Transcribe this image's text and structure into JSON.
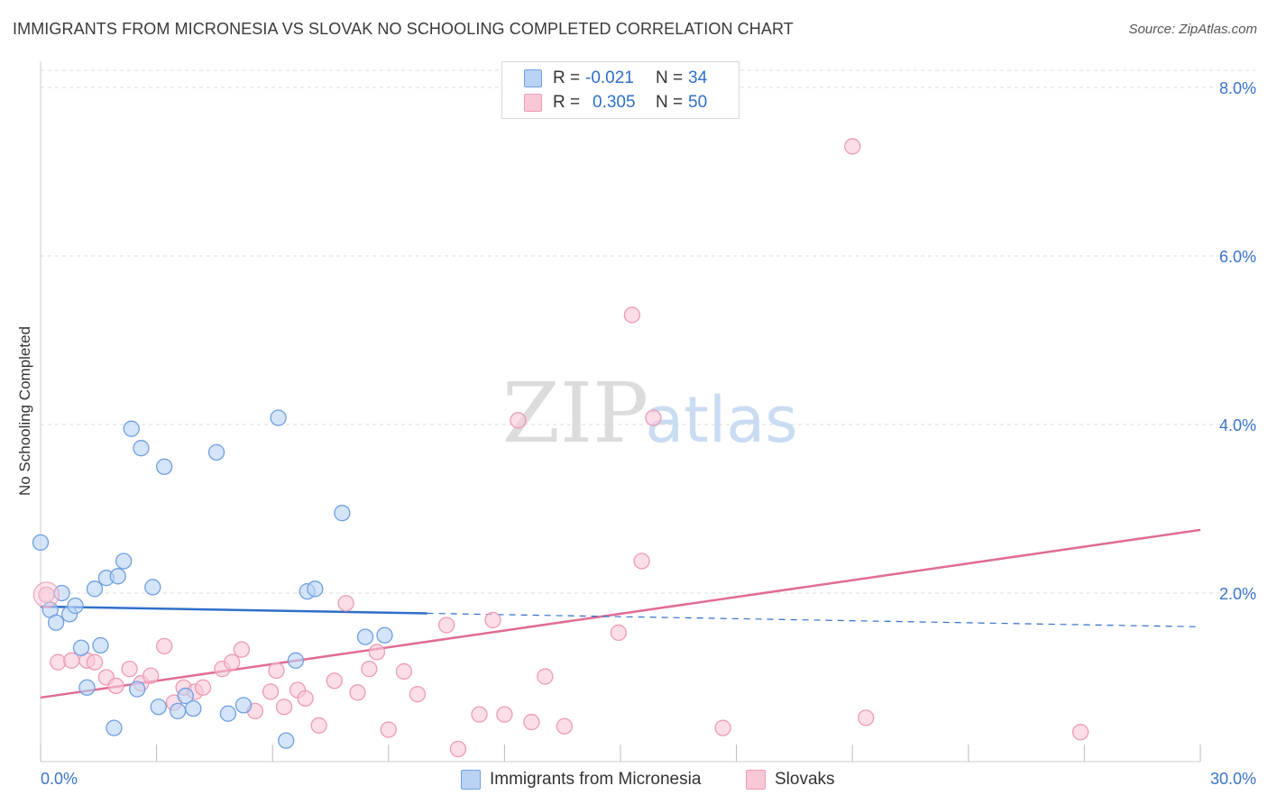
{
  "title": "IMMIGRANTS FROM MICRONESIA VS SLOVAK NO SCHOOLING COMPLETED CORRELATION CHART",
  "source": "Source: ZipAtlas.com",
  "watermark": {
    "zip": "ZIP",
    "atlas": "atlas"
  },
  "legend": {
    "r_label": "R =",
    "n_label": "N =",
    "series": [
      {
        "r": "-0.021",
        "n": "34"
      },
      {
        "r": "0.305",
        "n": "50"
      }
    ]
  },
  "chart_data": {
    "type": "scatter",
    "title": "IMMIGRANTS FROM MICRONESIA VS SLOVAK NO SCHOOLING COMPLETED CORRELATION CHART",
    "xlabel": "",
    "ylabel": "No Schooling Completed",
    "xlim": [
      0,
      30
    ],
    "ylim": [
      0,
      8.3
    ],
    "x_tick_labels": [
      {
        "value": 0,
        "label": "0.0%"
      },
      {
        "value": 30,
        "label": "30.0%"
      }
    ],
    "y_tick_labels": [
      {
        "value": 2,
        "label": "2.0%"
      },
      {
        "value": 4,
        "label": "4.0%"
      },
      {
        "value": 6,
        "label": "6.0%"
      },
      {
        "value": 8,
        "label": "8.0%"
      }
    ],
    "grid": true,
    "series": [
      {
        "name": "Immigrants from Micronesia",
        "color": "#6f9fe0",
        "fill": "#b9d3f5",
        "line_color": "#2f6fc9",
        "trend": {
          "x0": 0,
          "y0": 1.84,
          "x1": 10,
          "y1": 1.76,
          "dashed_to_x": 30,
          "dashed_to_y": 1.6
        },
        "points": [
          [
            0.0,
            2.6
          ],
          [
            0.25,
            1.8
          ],
          [
            0.4,
            1.65
          ],
          [
            0.55,
            2.0
          ],
          [
            0.75,
            1.75
          ],
          [
            0.9,
            1.85
          ],
          [
            1.05,
            1.35
          ],
          [
            1.2,
            0.88
          ],
          [
            1.4,
            2.05
          ],
          [
            1.55,
            1.38
          ],
          [
            1.7,
            2.18
          ],
          [
            2.0,
            2.2
          ],
          [
            2.15,
            2.38
          ],
          [
            2.35,
            3.95
          ],
          [
            2.5,
            0.86
          ],
          [
            2.6,
            3.72
          ],
          [
            2.9,
            2.07
          ],
          [
            3.05,
            0.65
          ],
          [
            3.2,
            3.5
          ],
          [
            3.55,
            0.6
          ],
          [
            3.75,
            0.78
          ],
          [
            3.95,
            0.63
          ],
          [
            4.55,
            3.67
          ],
          [
            4.85,
            0.57
          ],
          [
            5.25,
            0.67
          ],
          [
            6.15,
            4.08
          ],
          [
            6.35,
            0.25
          ],
          [
            6.6,
            1.2
          ],
          [
            6.9,
            2.02
          ],
          [
            7.1,
            2.05
          ],
          [
            7.8,
            2.95
          ],
          [
            8.4,
            1.48
          ],
          [
            8.9,
            1.5
          ],
          [
            1.9,
            0.4
          ]
        ]
      },
      {
        "name": "Slovaks",
        "color": "#ee9bb5",
        "fill": "#f9c8d7",
        "line_color": "#e06c94",
        "trend": {
          "x0": 0,
          "y0": 0.76,
          "x1": 30,
          "y1": 2.75
        },
        "points": [
          [
            0.15,
            1.98
          ],
          [
            0.45,
            1.18
          ],
          [
            0.8,
            1.2
          ],
          [
            1.2,
            1.2
          ],
          [
            1.4,
            1.18
          ],
          [
            1.7,
            1.0
          ],
          [
            1.95,
            0.9
          ],
          [
            2.3,
            1.1
          ],
          [
            2.6,
            0.93
          ],
          [
            2.85,
            1.02
          ],
          [
            3.2,
            1.37
          ],
          [
            3.45,
            0.7
          ],
          [
            3.7,
            0.88
          ],
          [
            4.0,
            0.83
          ],
          [
            4.2,
            0.88
          ],
          [
            4.7,
            1.1
          ],
          [
            4.95,
            1.18
          ],
          [
            5.2,
            1.33
          ],
          [
            5.55,
            0.6
          ],
          [
            5.95,
            0.83
          ],
          [
            6.1,
            1.08
          ],
          [
            6.3,
            0.65
          ],
          [
            6.65,
            0.85
          ],
          [
            6.85,
            0.75
          ],
          [
            7.2,
            0.43
          ],
          [
            7.6,
            0.96
          ],
          [
            7.9,
            1.88
          ],
          [
            8.2,
            0.82
          ],
          [
            8.5,
            1.1
          ],
          [
            8.7,
            1.3
          ],
          [
            9.0,
            0.38
          ],
          [
            9.4,
            1.07
          ],
          [
            9.75,
            0.8
          ],
          [
            10.5,
            1.62
          ],
          [
            10.8,
            0.15
          ],
          [
            11.35,
            0.56
          ],
          [
            11.7,
            1.68
          ],
          [
            12.0,
            0.56
          ],
          [
            12.35,
            4.05
          ],
          [
            12.7,
            0.47
          ],
          [
            13.05,
            1.01
          ],
          [
            13.55,
            0.42
          ],
          [
            14.95,
            1.53
          ],
          [
            15.3,
            5.3
          ],
          [
            15.55,
            2.38
          ],
          [
            15.85,
            4.08
          ],
          [
            17.65,
            0.4
          ],
          [
            21.0,
            7.3
          ],
          [
            21.35,
            0.52
          ],
          [
            26.9,
            0.35
          ]
        ]
      }
    ]
  }
}
